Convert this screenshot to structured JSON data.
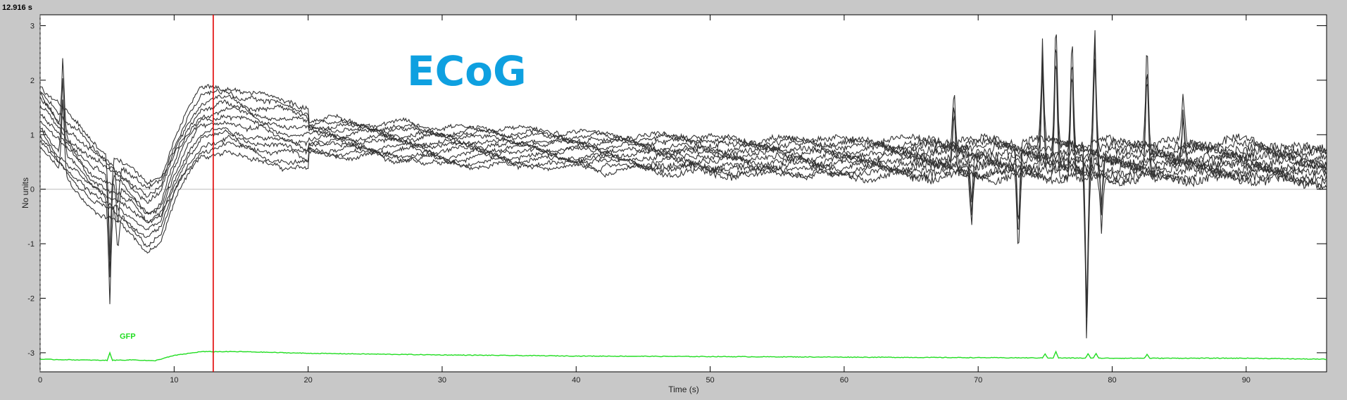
{
  "time_readout": "12.916 s",
  "colors": {
    "background": "#c8c8c8",
    "plot_background": "#ffffff",
    "traces": "#333333",
    "cursor": "#e00000",
    "gfp": "#22dd22",
    "title": "#0ea0e0"
  },
  "chart_data": {
    "type": "line",
    "title": "ECoG",
    "xlabel": "Time (s)",
    "ylabel": "No units",
    "xlim": [
      0,
      96
    ],
    "ylim": [
      -3.35,
      3.2
    ],
    "xticks": [
      0,
      10,
      20,
      30,
      40,
      50,
      60,
      70,
      80,
      90
    ],
    "yticks": [
      3,
      2,
      1,
      0,
      -1,
      -2,
      -3
    ],
    "xtick_labels": [
      "0",
      "10",
      "20",
      "30",
      "40",
      "50",
      "60",
      "70",
      "80",
      "90"
    ],
    "ytick_labels": [
      "3",
      "2",
      "1",
      "0",
      "-1",
      "-2",
      "-3"
    ],
    "cursor_x": 12.916,
    "zero_line": true,
    "grid": false,
    "gfp_label": "GFP",
    "series_count": 12,
    "base_curve": [
      [
        0,
        1.4
      ],
      [
        2,
        0.8
      ],
      [
        4,
        0.3
      ],
      [
        6,
        0.0
      ],
      [
        8,
        -0.45
      ],
      [
        9,
        -0.3
      ],
      [
        10,
        0.4
      ],
      [
        11,
        0.9
      ],
      [
        12,
        1.25
      ],
      [
        14,
        1.35
      ],
      [
        16,
        1.2
      ],
      [
        20,
        1.0
      ],
      [
        30,
        0.85
      ],
      [
        40,
        0.75
      ],
      [
        50,
        0.65
      ],
      [
        60,
        0.6
      ],
      [
        70,
        0.6
      ],
      [
        80,
        0.55
      ],
      [
        90,
        0.55
      ],
      [
        96,
        0.45
      ]
    ],
    "spikes": [
      {
        "x": 1.7,
        "y": 2.4
      },
      {
        "x": 5.2,
        "y": -1.8
      },
      {
        "x": 5.8,
        "y": -0.8
      },
      {
        "x": 68.2,
        "y": 1.75
      },
      {
        "x": 69.5,
        "y": -0.4
      },
      {
        "x": 73.0,
        "y": -1.2
      },
      {
        "x": 74.8,
        "y": 2.5
      },
      {
        "x": 75.8,
        "y": 3.15
      },
      {
        "x": 77.0,
        "y": 2.9
      },
      {
        "x": 78.1,
        "y": -2.9
      },
      {
        "x": 78.7,
        "y": 2.95
      },
      {
        "x": 79.2,
        "y": -0.5
      },
      {
        "x": 82.6,
        "y": 2.7
      },
      {
        "x": 85.3,
        "y": 1.55
      }
    ],
    "gfp": [
      [
        0,
        -3.12
      ],
      [
        5,
        -3.14
      ],
      [
        7,
        -3.13
      ],
      [
        8.5,
        -3.15
      ],
      [
        10,
        -3.05
      ],
      [
        12,
        -2.98
      ],
      [
        15,
        -2.98
      ],
      [
        20,
        -3.01
      ],
      [
        30,
        -3.04
      ],
      [
        40,
        -3.06
      ],
      [
        50,
        -3.07
      ],
      [
        60,
        -3.08
      ],
      [
        70,
        -3.09
      ],
      [
        80,
        -3.1
      ],
      [
        90,
        -3.1
      ],
      [
        96,
        -3.12
      ]
    ],
    "gfp_spikes": [
      {
        "x": 5.2,
        "y": -3.0
      },
      {
        "x": 75.0,
        "y": -3.02
      },
      {
        "x": 75.8,
        "y": -2.98
      },
      {
        "x": 78.2,
        "y": -3.02
      },
      {
        "x": 78.8,
        "y": -3.01
      },
      {
        "x": 82.6,
        "y": -3.03
      }
    ]
  }
}
